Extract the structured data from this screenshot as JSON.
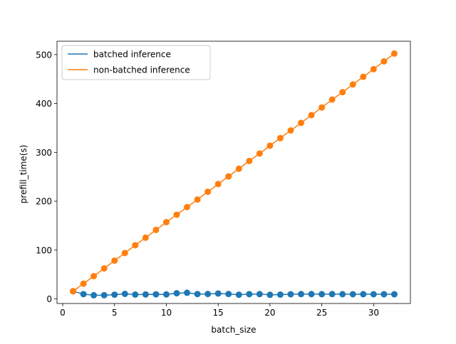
{
  "chart_data": {
    "type": "line",
    "title": "",
    "xlabel": "batch_size",
    "ylabel": "prefill_time(s)",
    "xlim": [
      -0.55,
      33.55
    ],
    "ylim": [
      -9.35,
      527.35
    ],
    "xticks": [
      0,
      5,
      10,
      15,
      20,
      25,
      30
    ],
    "yticks": [
      0,
      100,
      200,
      300,
      400,
      500
    ],
    "grid": false,
    "legend_position": "upper-left",
    "x": [
      1,
      2,
      3,
      4,
      5,
      6,
      7,
      8,
      9,
      10,
      11,
      12,
      13,
      14,
      15,
      16,
      17,
      18,
      19,
      20,
      21,
      22,
      23,
      24,
      25,
      26,
      27,
      28,
      29,
      30,
      31,
      32
    ],
    "series": [
      {
        "name": "batched inference",
        "color": "#1f77b4",
        "values": [
          15.8,
          9.8,
          7.5,
          7.6,
          8.7,
          10.3,
          8.9,
          9.1,
          9.4,
          9.2,
          11.6,
          12.6,
          10.0,
          10.1,
          11.1,
          10.1,
          8.6,
          9.8,
          9.9,
          8.4,
          8.8,
          9.5,
          9.9,
          9.9,
          9.7,
          9.9,
          9.7,
          9.6,
          9.7,
          9.6,
          9.6,
          9.5
        ]
      },
      {
        "name": "non-batched inference",
        "color": "#ff7f0e",
        "values": [
          15.5,
          31.2,
          46.6,
          62.4,
          78.3,
          94.0,
          109.9,
          125.3,
          141.2,
          157.1,
          172.3,
          187.9,
          203.3,
          219.2,
          235.1,
          250.7,
          266.4,
          282.3,
          297.6,
          313.5,
          329.1,
          344.8,
          360.2,
          376.1,
          391.8,
          407.9,
          423.1,
          438.9,
          454.5,
          470.2,
          486.1,
          502.0
        ]
      }
    ]
  }
}
